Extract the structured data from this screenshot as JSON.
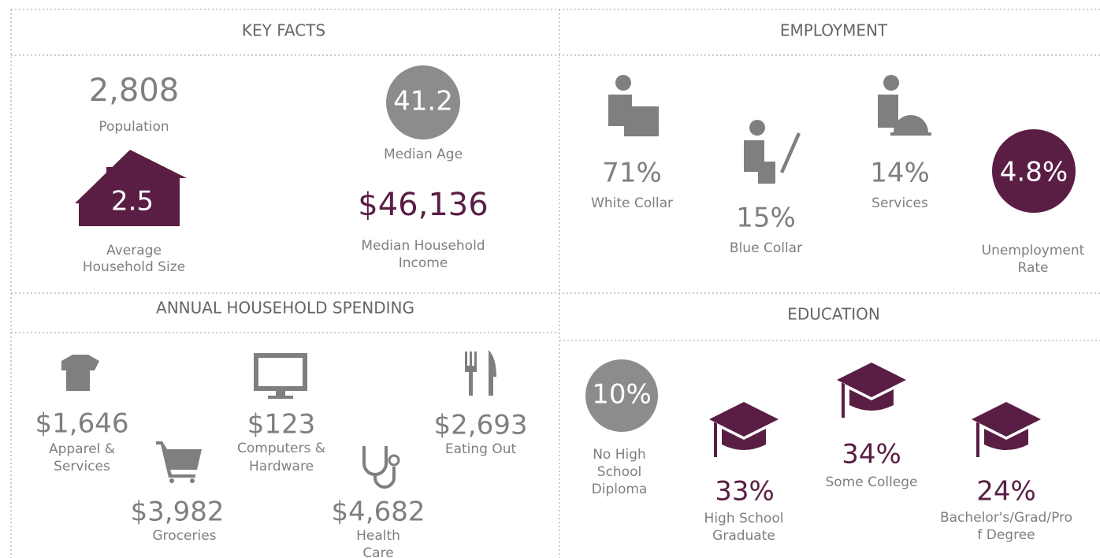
{
  "key_facts": {
    "title": "KEY FACTS",
    "population": {
      "value": "2,808",
      "label": [
        "Population"
      ]
    },
    "household_size": {
      "value": "2.5",
      "label": [
        "Average",
        "Household Size"
      ]
    },
    "median_age": {
      "value": "41.2",
      "label": [
        "Median Age"
      ]
    },
    "median_income": {
      "value": "$46,136",
      "label": [
        "Median Household",
        "Income"
      ]
    }
  },
  "employment": {
    "title": "EMPLOYMENT",
    "white_collar": {
      "value": "71%",
      "label": [
        "White Collar"
      ]
    },
    "blue_collar": {
      "value": "15%",
      "label": [
        "Blue Collar"
      ]
    },
    "services": {
      "value": "14%",
      "label": [
        "Services"
      ]
    },
    "unemployment": {
      "value": "4.8%",
      "label": [
        "Unemployment",
        "Rate"
      ]
    }
  },
  "spending": {
    "title": "ANNUAL HOUSEHOLD SPENDING",
    "apparel": {
      "value": "$1,646",
      "label": [
        "Apparel &",
        "Services"
      ]
    },
    "groceries": {
      "value": "$3,982",
      "label": [
        "Groceries"
      ]
    },
    "computers": {
      "value": "$123",
      "label": [
        "Computers &",
        "Hardware"
      ]
    },
    "health": {
      "value": "$4,682",
      "label": [
        "Health",
        "Care"
      ]
    },
    "eating_out": {
      "value": "$2,693",
      "label": [
        "Eating Out"
      ]
    }
  },
  "education": {
    "title": "EDUCATION",
    "no_hs": {
      "value": "10%",
      "label": [
        "No High",
        "School",
        "Diploma"
      ]
    },
    "hs_grad": {
      "value": "33%",
      "label": [
        "High School",
        "Graduate"
      ]
    },
    "some_college": {
      "value": "34%",
      "label": [
        "Some College"
      ]
    },
    "bachelors": {
      "value": "24%",
      "label": [
        "Bachelor's/Grad/Pro",
        "f Degree"
      ]
    }
  }
}
